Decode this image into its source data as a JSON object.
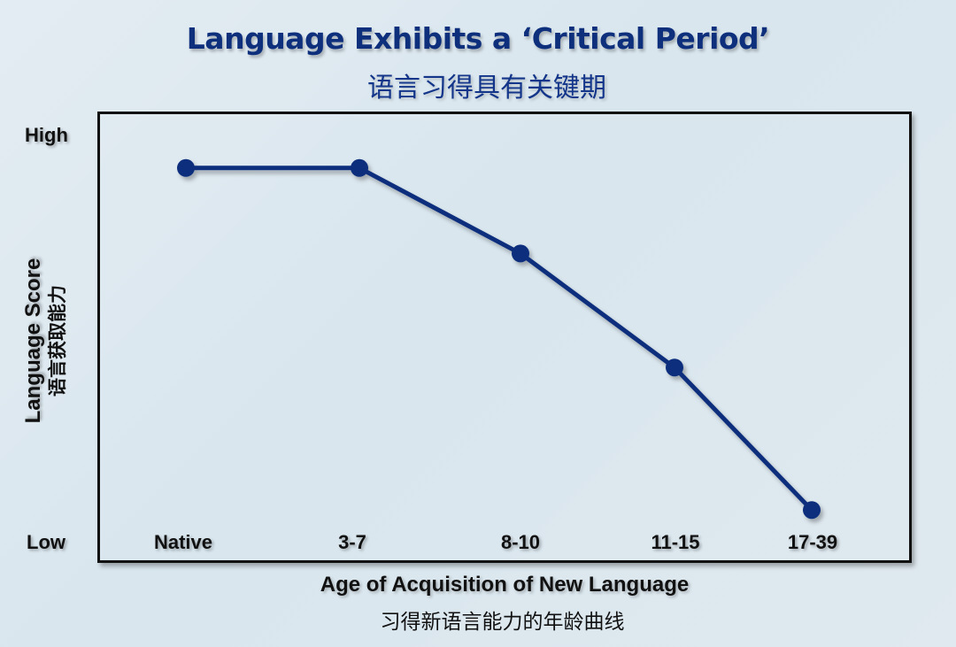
{
  "title": "Language Exhibits a ‘Critical Period’",
  "subtitle": "语言习得具有关键期",
  "colors": {
    "line": "#0d2f7c",
    "marker": "#0d2f7c",
    "frame": "#111111",
    "title": "#0d2f7c"
  },
  "y_axis": {
    "title": "Language Score",
    "title_zh": "语言获取能力",
    "high_label": "High",
    "low_label": "Low"
  },
  "x_axis": {
    "title": "Age of Acquisition of New Language",
    "title_zh": "习得新语言能力的年龄曲线"
  },
  "chart_data": {
    "type": "line",
    "title": "Language Exhibits a ‘Critical Period’",
    "subtitle": "语言习得具有关键期",
    "xlabel": "Age of Acquisition of New Language",
    "xlabel_zh": "习得新语言能力的年龄曲线",
    "ylabel": "Language Score",
    "ylabel_zh": "语言获取能力",
    "categories": [
      "Native",
      "3-7",
      "8-10",
      "11-15",
      "17-39"
    ],
    "series": [
      {
        "name": "Language Score",
        "values": [
          92,
          92,
          71,
          43,
          8
        ]
      }
    ],
    "ylim": [
      0,
      100
    ],
    "y_tick_labels": {
      "0": "Low",
      "100": "High"
    },
    "grid": false,
    "legend": "none",
    "markers": true
  }
}
